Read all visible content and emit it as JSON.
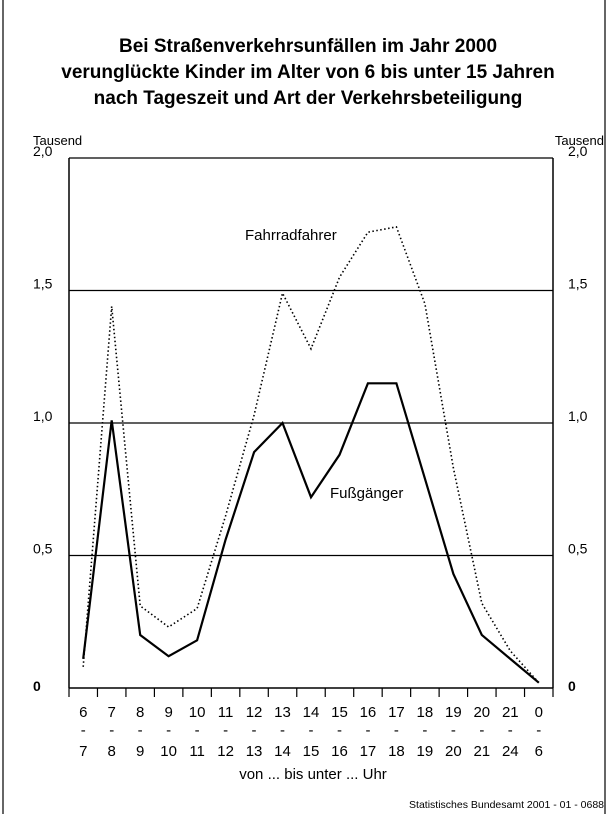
{
  "chart_data": {
    "type": "line",
    "title_lines": [
      "Bei Straßenverkehrsunfällen im Jahr 2000",
      "verunglückte Kinder im Alter von 6 bis unter 15 Jahren",
      "nach Tageszeit und Art der Verkehrsbeteiligung"
    ],
    "unit_left": "Tausend",
    "unit_right": "Tausend",
    "y_ticks": [
      {
        "value": 0,
        "label": "0"
      },
      {
        "value": 0.5,
        "label": "0,5"
      },
      {
        "value": 1.0,
        "label": "1,0"
      },
      {
        "value": 1.5,
        "label": "1,5"
      },
      {
        "value": 2.0,
        "label": "2,0"
      }
    ],
    "ylim": [
      0,
      2.0
    ],
    "gridlines": [
      0.5,
      1.0,
      1.5
    ],
    "categories": [
      {
        "from": "6",
        "to": "7"
      },
      {
        "from": "7",
        "to": "8"
      },
      {
        "from": "8",
        "to": "9"
      },
      {
        "from": "9",
        "to": "10"
      },
      {
        "from": "10",
        "to": "11"
      },
      {
        "from": "11",
        "to": "12"
      },
      {
        "from": "12",
        "to": "13"
      },
      {
        "from": "13",
        "to": "14"
      },
      {
        "from": "14",
        "to": "15"
      },
      {
        "from": "15",
        "to": "16"
      },
      {
        "from": "16",
        "to": "17"
      },
      {
        "from": "17",
        "to": "18"
      },
      {
        "from": "18",
        "to": "19"
      },
      {
        "from": "19",
        "to": "20"
      },
      {
        "from": "20",
        "to": "21"
      },
      {
        "from": "21",
        "to": "24"
      },
      {
        "from": "0",
        "to": "6"
      }
    ],
    "category_separator": "-",
    "xlabel": "von ... bis unter ... Uhr",
    "series": [
      {
        "name": "Fahrradfahrer",
        "style": "dotted",
        "values": [
          0.08,
          1.44,
          0.31,
          0.23,
          0.3,
          0.65,
          1.03,
          1.49,
          1.28,
          1.55,
          1.72,
          1.74,
          1.45,
          0.83,
          0.32,
          0.14,
          0.02
        ]
      },
      {
        "name": "Fußgänger",
        "style": "solid",
        "values": [
          0.11,
          1.01,
          0.2,
          0.12,
          0.18,
          0.56,
          0.89,
          1.0,
          0.72,
          0.88,
          1.15,
          1.15,
          0.79,
          0.43,
          0.2,
          0.11,
          0.02
        ]
      }
    ],
    "source": "Statistisches Bundesamt 2001 - 01 - 0688"
  }
}
